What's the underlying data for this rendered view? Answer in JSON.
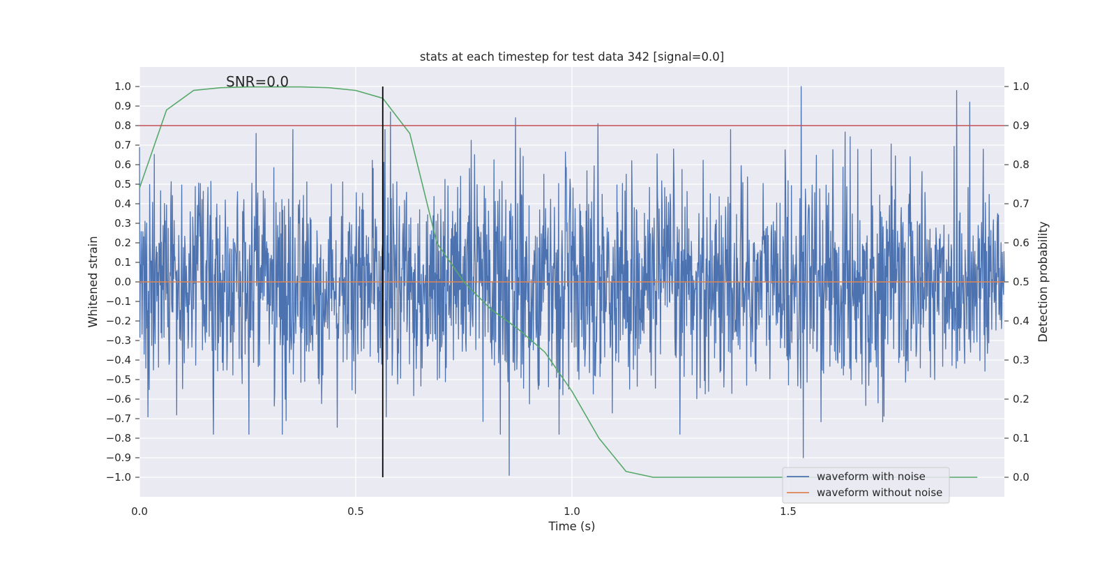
{
  "chart_data": {
    "type": "line",
    "title": "stats at each timestep for test data 342 [signal=0.0]",
    "xlabel": "Time (s)",
    "ylabel": "Whitened strain",
    "y2label": "Detection probability",
    "xlim": [
      0.0,
      2.0
    ],
    "ylim": [
      -1.1,
      1.1
    ],
    "y2lim": [
      -0.05,
      1.05
    ],
    "xticks": [
      0.0,
      0.5,
      1.0,
      1.5
    ],
    "xtick_labels": [
      "0.0",
      "0.5",
      "1.0",
      "1.5"
    ],
    "yticks": [
      1.0,
      0.9,
      0.8,
      0.7,
      0.6,
      0.5,
      0.4,
      0.3,
      0.2,
      0.1,
      0.0,
      -0.1,
      -0.2,
      -0.3,
      -0.4,
      -0.5,
      -0.6,
      -0.7,
      -0.8,
      -0.9,
      -1.0
    ],
    "ytick_labels": [
      "1.0",
      "0.9",
      "0.8",
      "0.7",
      "0.6",
      "0.5",
      "0.4",
      "0.3",
      "0.2",
      "0.1",
      "0.0",
      "−0.1",
      "−0.2",
      "−0.3",
      "−0.4",
      "−0.5",
      "−0.6",
      "−0.7",
      "−0.8",
      "−0.9",
      "−1.0"
    ],
    "y2ticks": [
      1.0,
      0.9,
      0.8,
      0.7,
      0.6,
      0.5,
      0.4,
      0.3,
      0.2,
      0.1,
      0.0
    ],
    "y2tick_labels": [
      "1.0",
      "0.9",
      "0.8",
      "0.7",
      "0.6",
      "0.5",
      "0.4",
      "0.3",
      "0.2",
      "0.1",
      "0.0"
    ],
    "grid": true,
    "legend_position": "lower-right",
    "annotation": "SNR=0.0",
    "series": [
      {
        "name": "waveform with noise",
        "color": "#4c72b0",
        "axis": "left",
        "style": "noise-trace",
        "x_range": [
          0.0,
          2.0
        ],
        "notable_peaks": [
          {
            "x": 0.0,
            "y": 0.69
          },
          {
            "x": 0.27,
            "y": 0.76
          },
          {
            "x": 0.58,
            "y": 0.87
          },
          {
            "x": 0.855,
            "y": -0.99
          },
          {
            "x": 0.87,
            "y": 0.84
          },
          {
            "x": 1.06,
            "y": 0.81
          },
          {
            "x": 1.53,
            "y": 1.0
          },
          {
            "x": 1.535,
            "y": -0.9
          },
          {
            "x": 1.89,
            "y": 0.98
          },
          {
            "x": 1.92,
            "y": 0.92
          }
        ]
      },
      {
        "name": "waveform without noise",
        "color": "#dd8452",
        "axis": "left",
        "x": [
          0.0,
          2.0
        ],
        "y": [
          0.0,
          0.0
        ]
      },
      {
        "color": "#55a868",
        "axis": "right",
        "x": [
          0.0,
          0.0625,
          0.125,
          0.1875,
          0.25,
          0.3125,
          0.375,
          0.4375,
          0.5,
          0.5625,
          0.625,
          0.6875,
          0.75,
          0.8125,
          0.875,
          0.9375,
          1.0,
          1.0625,
          1.125,
          1.1875,
          1.25,
          1.3125,
          1.375,
          1.4375,
          1.5,
          1.5625,
          1.625,
          1.6875,
          1.75,
          1.8125,
          1.875,
          1.9375
        ],
        "y": [
          0.74,
          0.94,
          0.99,
          0.997,
          0.999,
          0.999,
          0.999,
          0.997,
          0.99,
          0.97,
          0.88,
          0.6,
          0.5,
          0.43,
          0.38,
          0.32,
          0.22,
          0.1,
          0.015,
          0.0,
          0.0,
          0.0,
          0.0,
          0.0,
          0.0,
          0.0,
          0.0,
          0.0,
          0.0,
          0.0,
          0.0,
          0.0
        ]
      },
      {
        "color": "#c44e52",
        "axis": "right",
        "style": "threshold",
        "x": [
          0.0,
          2.0
        ],
        "y": [
          0.9,
          0.9
        ]
      },
      {
        "color": "#000000",
        "axis": "left",
        "style": "vertical-marker",
        "x": [
          0.5625,
          0.5625
        ],
        "y": [
          -1.0,
          1.0
        ]
      }
    ],
    "colors": {
      "plot_background": "#eaeaf2",
      "grid": "#ffffff",
      "text": "#262626"
    }
  }
}
